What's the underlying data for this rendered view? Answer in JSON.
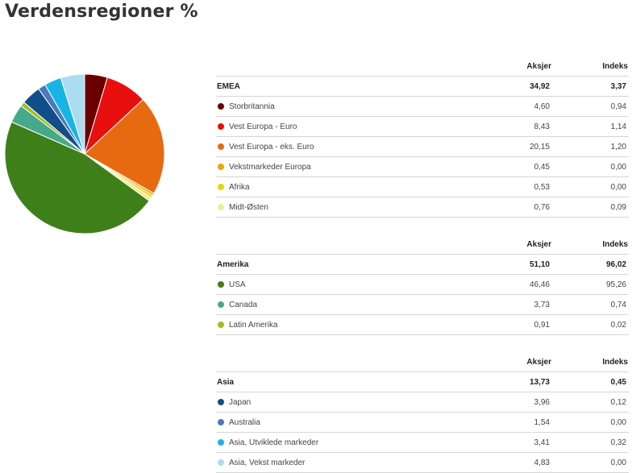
{
  "title": "Verdensregioner %",
  "colors": {
    "storbritannia": "#6b0000",
    "vest_europa_euro": "#e8100f",
    "vest_europa_eks_euro": "#e86a10",
    "vekstmarkeder_europa": "#e8a800",
    "afrika": "#e8d400",
    "midt_osten": "#eeee8c",
    "usa": "#3f7f1a",
    "canada": "#46a98c",
    "latin_amerika": "#a2be1a",
    "japan": "#124e8a",
    "australia": "#4a7ab7",
    "asia_utviklede": "#18b4e6",
    "asia_vekst": "#acdcf0"
  },
  "chart_data": {
    "type": "pie",
    "title": "Verdensregioner %",
    "start_angle_deg": 0,
    "direction": "clockwise",
    "series": [
      {
        "label": "Storbritannia",
        "value": 4.6
      },
      {
        "label": "Vest Europa - Euro",
        "value": 8.43
      },
      {
        "label": "Vest Europa - eks. Euro",
        "value": 20.15
      },
      {
        "label": "Vekstmarkeder Europa",
        "value": 0.45
      },
      {
        "label": "Afrika",
        "value": 0.53
      },
      {
        "label": "Midt-Østen",
        "value": 0.76
      },
      {
        "label": "USA",
        "value": 46.46
      },
      {
        "label": "Canada",
        "value": 3.73
      },
      {
        "label": "Latin Amerika",
        "value": 0.91
      },
      {
        "label": "Japan",
        "value": 3.96
      },
      {
        "label": "Australia",
        "value": 1.54
      },
      {
        "label": "Asia, Utviklede markeder",
        "value": 3.41
      },
      {
        "label": "Asia, Vekst markeder",
        "value": 4.83
      }
    ],
    "colors": [
      "#6b0000",
      "#e8100f",
      "#e86a10",
      "#e8a800",
      "#e8d400",
      "#eeee8c",
      "#3f7f1a",
      "#46a98c",
      "#a2be1a",
      "#124e8a",
      "#4a7ab7",
      "#18b4e6",
      "#acdcf0"
    ]
  },
  "tables": [
    {
      "header": {
        "name": "EMEA",
        "col_a": "Aksjer",
        "col_b": "Indeks",
        "total_a": "34,92",
        "total_b": "3,37"
      },
      "rows": [
        {
          "name": "Storbritannia",
          "a": "4,60",
          "b": "0,94",
          "color": "#6b0000"
        },
        {
          "name": "Vest Europa - Euro",
          "a": "8,43",
          "b": "1,14",
          "color": "#e8100f"
        },
        {
          "name": "Vest Europa - eks. Euro",
          "a": "20,15",
          "b": "1,20",
          "color": "#e86a10"
        },
        {
          "name": "Vekstmarkeder Europa",
          "a": "0,45",
          "b": "0,00",
          "color": "#e8a800"
        },
        {
          "name": "Afrika",
          "a": "0,53",
          "b": "0,00",
          "color": "#e8d400"
        },
        {
          "name": "Midt-Østen",
          "a": "0,76",
          "b": "0,09",
          "color": "#eeee8c"
        }
      ]
    },
    {
      "header": {
        "name": "Amerika",
        "col_a": "Aksjer",
        "col_b": "Indeks",
        "total_a": "51,10",
        "total_b": "96,02"
      },
      "rows": [
        {
          "name": "USA",
          "a": "46,46",
          "b": "95,26",
          "color": "#3f7f1a"
        },
        {
          "name": "Canada",
          "a": "3,73",
          "b": "0,74",
          "color": "#46a98c"
        },
        {
          "name": "Latin Amerika",
          "a": "0,91",
          "b": "0,02",
          "color": "#a2be1a"
        }
      ]
    },
    {
      "header": {
        "name": "Asia",
        "col_a": "Aksjer",
        "col_b": "Indeks",
        "total_a": "13,73",
        "total_b": "0,45"
      },
      "rows": [
        {
          "name": "Japan",
          "a": "3,96",
          "b": "0,12",
          "color": "#124e8a"
        },
        {
          "name": "Australia",
          "a": "1,54",
          "b": "0,00",
          "color": "#4a7ab7"
        },
        {
          "name": "Asia, Utviklede markeder",
          "a": "3,41",
          "b": "0,32",
          "color": "#18b4e6"
        },
        {
          "name": "Asia, Vekst markeder",
          "a": "4,83",
          "b": "0,00",
          "color": "#acdcf0"
        }
      ]
    }
  ]
}
